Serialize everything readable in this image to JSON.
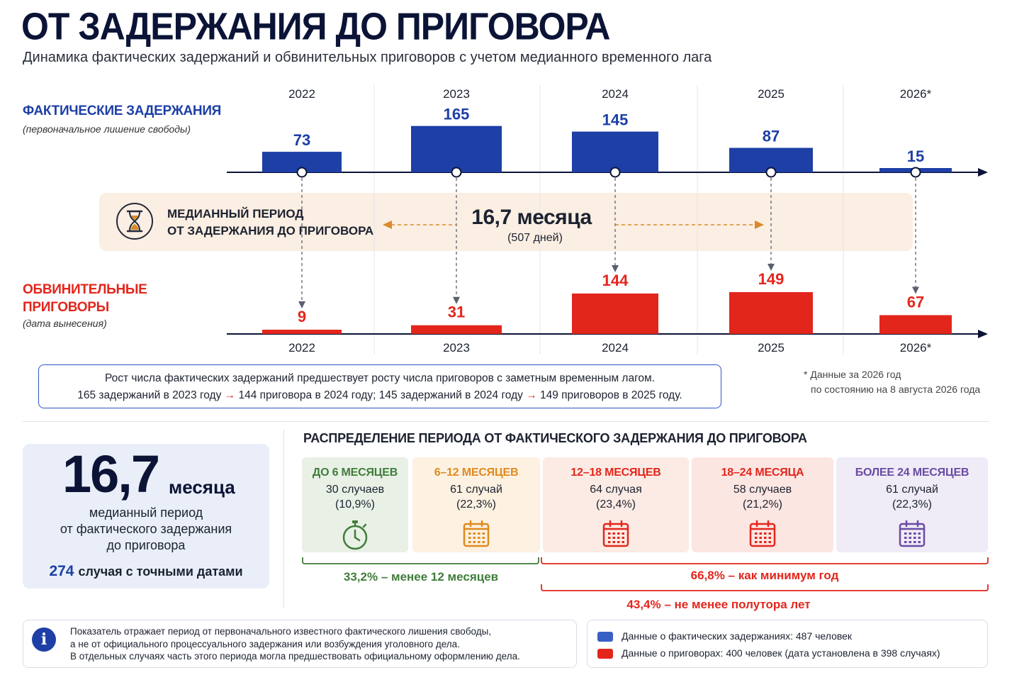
{
  "header": {
    "title": "ОТ ЗАДЕРЖАНИЯ ДО ПРИГОВОРА",
    "subtitle": "Динамика фактических задержаний и обвинительных приговоров с учетом медианного временного лага"
  },
  "colors": {
    "blue": "#1d3fa6",
    "red": "#e3261c",
    "navy": "#0b1436",
    "green": "#3f7d3a",
    "orange": "#e08a1e",
    "purple": "#6a4ba3"
  },
  "chart_data": {
    "type": "bar",
    "categories": [
      "2022",
      "2023",
      "2024",
      "2025",
      "2026*"
    ],
    "series": [
      {
        "name": "ФАКТИЧЕСКИЕ ЗАДЕРЖАНИЯ",
        "values": [
          73,
          165,
          145,
          87,
          15
        ],
        "color": "#1d3fa6"
      },
      {
        "name": "ОБВИНИТЕЛЬНЫЕ ПРИГОВОРЫ",
        "values": [
          9,
          31,
          144,
          149,
          67
        ],
        "color": "#e3261c"
      }
    ],
    "row_notes": [
      "(первоначальное лишение свободы)",
      "(дата вынесения)"
    ]
  },
  "median": {
    "label_line1": "МЕДИАННЫЙ ПЕРИОД",
    "label_line2": "ОТ ЗАДЕРЖАНИЯ ДО ПРИГОВОРА",
    "value": "16,7 месяца",
    "days": "(507 дней)"
  },
  "lag_note": {
    "line1": "Рост числа фактических задержаний предшествует росту числа приговоров с заметным временным лагом.",
    "part1": "165 задержаний в 2023 году",
    "arrow": "→",
    "part2": "144 приговора в 2024 году; 145 задержаний в 2024 году",
    "part3": "149 приговоров в 2025 году."
  },
  "footnote": {
    "line1": "* Данные за 2026 год",
    "line2": "по состоянию на 8 августа 2026 года"
  },
  "stat": {
    "number": "16,7",
    "unit": "месяца",
    "desc": [
      "медианный период",
      "от фактического задержания",
      "до приговора"
    ],
    "cases_num": "274",
    "cases_text": "случая с точными датами"
  },
  "distribution": {
    "title": "РАСПРЕДЕЛЕНИЕ ПЕРИОДА ОТ ФАКТИЧЕСКОГО ЗАДЕРЖАНИЯ ДО ПРИГОВОРА",
    "items": [
      {
        "label": "ДО 6 МЕСЯЦЕВ",
        "count": "30 случаев",
        "pct": "(10,9%)",
        "share": 10.9,
        "color": "#3f7d3a",
        "bg": "#e9f1e6",
        "icon": "stopwatch-icon"
      },
      {
        "label": "6–12 МЕСЯЦЕВ",
        "count": "61 случай",
        "pct": "(22,3%)",
        "share": 22.3,
        "color": "#e08a1e",
        "bg": "#fdf1e1",
        "icon": "calendar-icon"
      },
      {
        "label": "12–18 МЕСЯЦЕВ",
        "count": "64 случая",
        "pct": "(23,4%)",
        "share": 23.4,
        "color": "#e3261c",
        "bg": "#fcebe4",
        "icon": "calendar-icon"
      },
      {
        "label": "18–24 МЕСЯЦА",
        "count": "58 случаев",
        "pct": "(21,2%)",
        "share": 21.2,
        "color": "#e3261c",
        "bg": "#fce6e2",
        "icon": "calendar-icon"
      },
      {
        "label": "БОЛЕЕ 24 МЕСЯЦЕВ",
        "count": "61 случай",
        "pct": "(22,3%)",
        "share": 22.3,
        "color": "#6a4ba3",
        "bg": "#efebf7",
        "icon": "calendar-icon"
      }
    ],
    "brackets": [
      {
        "text": "33,2% – менее 12 месяцев",
        "color": "#3f7d3a"
      },
      {
        "text": "66,8% – как минимум год",
        "color": "#e3261c"
      },
      {
        "text": "43,4% – не менее полутора лет",
        "color": "#e3261c"
      }
    ]
  },
  "info": {
    "icon": "info-icon",
    "lines": [
      "Показатель отражает период от первоначального известного фактического лишения свободы,",
      "а не от официального процессуального задержания или возбуждения уголовного дела.",
      "В отдельных случаях часть этого периода могла предшествовать официальному оформлению дела."
    ]
  },
  "legend": {
    "detentions": "Данные о фактических задержаниях: 487 человек",
    "sentences": "Данные о приговорах: 400 человек (дата установлена в 398 случаях)"
  }
}
